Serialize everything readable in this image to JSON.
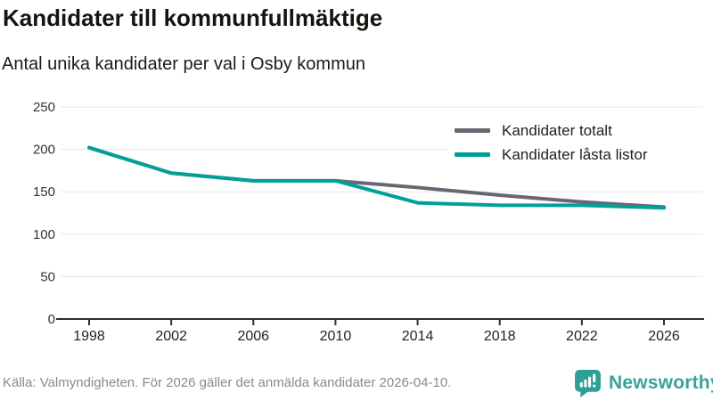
{
  "header": {
    "title": "Kandidater till kommunfullmäktige",
    "subtitle": "Antal unika kandidater per val i Osby kommun"
  },
  "chart_data": {
    "type": "line",
    "x": [
      1998,
      2002,
      2006,
      2010,
      2014,
      2018,
      2022,
      2026
    ],
    "series": [
      {
        "name": "Kandidater totalt",
        "color": "#686670",
        "values": [
          202,
          172,
          163,
          163,
          155,
          146,
          138,
          132
        ]
      },
      {
        "name": "Kandidater låsta listor",
        "color": "#00a09a",
        "values": [
          202,
          172,
          163,
          163,
          137,
          134,
          134,
          131
        ]
      }
    ],
    "ylim": [
      0,
      250
    ],
    "yticks": [
      0,
      50,
      100,
      150,
      200,
      250
    ],
    "grid": true,
    "legend_position": "top-right",
    "title": "Kandidater till kommunfullmäktige",
    "xlabel": "",
    "ylabel": ""
  },
  "footer": {
    "source": "Källa: Valmyndigheten. För 2026 gäller det anmälda kandidater 2026-04-10.",
    "brand": "Newsworthy"
  },
  "colors": {
    "total_line": "#686670",
    "locked_line": "#00a09a",
    "gridline": "#e7e7e7",
    "axis": "#2e2e2e",
    "brand_teal": "#3aa29a"
  }
}
